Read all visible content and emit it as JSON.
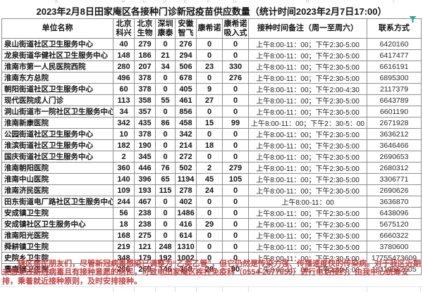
{
  "title": "2023年2月8日田家庵区各接种门诊新冠疫苗供应数量（统计时间2023年2月7日17:00）",
  "filter_icon_color": "#1aa79e",
  "sheet": {
    "column_letters": [
      "A",
      "B",
      "C",
      "D",
      "E",
      "F",
      "G",
      "H",
      "I"
    ]
  },
  "table": {
    "columns": [
      "单位名称",
      "北京\n科兴",
      "北京\n生物",
      "深圳\n康泰",
      "安徽\n智飞",
      "康希诺",
      "康希诺\n吸入式",
      "接种时间备注（周一至周六）",
      "联系方式"
    ],
    "rows": [
      {
        "name": "泉山街道社区卫生服务中心",
        "counts": [
          40,
          279,
          0,
          276,
          0,
          0
        ],
        "time": "上午8:00-11：00；下午2:30-5:00",
        "contact": "6420160"
      },
      {
        "name": "龙泉街道华健社区卫生服务中心",
        "counts": [
          148,
          186,
          21,
          294,
          0,
          0
        ],
        "time": "上午8:00-11：00；下午2:30-5:00",
        "contact": "6417477"
      },
      {
        "name": "淮南市第一人民医院西院",
        "counts": [
          280,
          207,
          34,
          506,
          23,
          330
        ],
        "time": "上午8:00-11：00；下午2:30-5:00",
        "contact": "6616191"
      },
      {
        "name": "淮南东方总院",
        "counts": [
          496,
          378,
          0,
          678,
          0,
          276
        ],
        "time": "上午8:00-11：00；下午2:30-5:00",
        "contact": "6895300"
      },
      {
        "name": "朝阳街道社区卫生服务中心",
        "counts": [
          60,
          378,
          0,
          405,
          9,
          0
        ],
        "time": "上午8:00-11：00；下午2:00-4:30",
        "contact": "2117379"
      },
      {
        "name": "现代医院成人门诊",
        "counts": [
          113,
          358,
          55,
          461,
          27,
          0
        ],
        "time": "上午8:00-11：00；下午2:30-5:00",
        "contact": "6643789"
      },
      {
        "name": "洞山街道市一院社区卫生服务中心",
        "counts": [
          34,
          357,
          0,
          856,
          0,
          0
        ],
        "time": "上午8:00-11：00；下午2:30-5:00",
        "contact": "6601190"
      },
      {
        "name": "淮南新康医院",
        "counts": [
          342,
          435,
          86,
          458,
          15,
          99
        ],
        "time": "上午8:00-11：00；下午2：30-5：00",
        "contact": "2671928"
      },
      {
        "name": "公园街道社区卫生服务中心",
        "counts": [
          10,
          378,
          0,
          342,
          0,
          0
        ],
        "time": "上午8:00-11：00；下午2:30-5:00",
        "contact": "3636212"
      },
      {
        "name": "淮滨街道社区卫生服务中心",
        "counts": [
          182,
          190,
          0,
          214,
          18,
          0
        ],
        "time": "上午8:00-11：00；下午2:30-5:00",
        "contact": "3646466"
      },
      {
        "name": "国庆街道社区卫生服务中心",
        "counts": [
          2,
          345,
          0,
          272,
          0,
          0
        ],
        "time": "上午8:00-11：00；下午2:30-5:00",
        "contact": "2690653"
      },
      {
        "name": "淮南朝阳医院",
        "counts": [
          360,
          446,
          76,
          502,
          2,
          279
        ],
        "time": "上午8:00-11：00；下午2:30-5:00",
        "contact": "2680312"
      },
      {
        "name": "淮南中山医院",
        "counts": [
          140,
          396,
          65,
          1194,
          45,
          105
        ],
        "time": "上午8:00-11：00；下午2:30-5:00",
        "contact": "3306771"
      },
      {
        "name": "淮南济民医院",
        "counts": [
          109,
          193,
          115,
          278,
          24,
          0
        ],
        "time": "上午8:00-11：00；下午2:30-5:00",
        "contact": "2690626"
      },
      {
        "name": "田东街道电厂路社区卫生服务中心",
        "counts": [
          244,
          467,
          0,
          402,
          0,
          0
        ],
        "time": "上午8:00-11：00",
        "contact": "3636870"
      },
      {
        "name": "安成镇卫生院",
        "counts": [
          56,
          238,
          0,
          1486,
          0,
          0
        ],
        "time": "上午8:00-11：00；下午2:30-5:00",
        "contact": "6438096"
      },
      {
        "name": "安成镇社区卫生服务中心",
        "counts": [
          18,
          238,
          0,
          416,
          29,
          0
        ],
        "time": "上午8:00-11：00；下午2:30-5:00",
        "contact": "5675120"
      },
      {
        "name": "淮南阳光医院",
        "counts": [
          168,
          275,
          0,
          614,
          0,
          0
        ],
        "time": "上午8:00-11：00；下午2:30-5:00",
        "contact": "6660322"
      },
      {
        "name": "舜耕镇卫生院",
        "counts": [
          219,
          121,
          248,
          1310,
          0,
          0
        ],
        "time": "上午8:00-11：00；下午2:30-5:00",
        "contact": "3780600"
      },
      {
        "name": "史院乡卫生院",
        "counts": [
          348,
          179,
          192,
          1002,
          0,
          0
        ],
        "time": "上午8:00-11：00；下午2:30-5:00",
        "contact": "17755473609"
      },
      {
        "name": "曹庵镇卫生院",
        "counts": [
          206,
          269,
          146,
          368,
          28,
          90
        ],
        "time": "上午8:00-11：00；下午2:30-5:00",
        "contact": "18119512605"
      }
    ]
  },
  "notice": "辖区居民朋友们，尽管新冠病毒感染已调整为“乙类乙管”，但它仍然是传染力强、传播速度快的传染病。对于我区近期未感染过新冠病毒且有接种意愿的居民，可致电田家庵区疾控免疫科（0554-2677059）进行电话预约，由我中心统筹安排，秉着就近接种原则，及时安排接种。"
}
